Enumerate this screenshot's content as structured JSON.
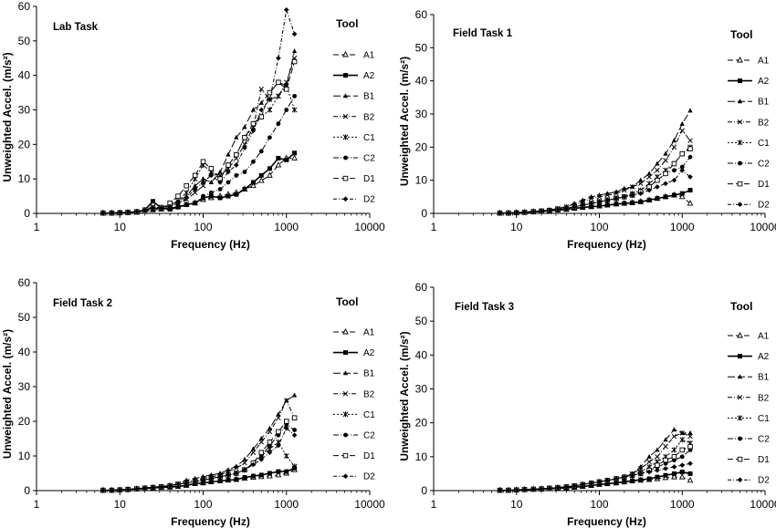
{
  "figure": {
    "legend_title": "Tool",
    "xlabel": "Frequency (Hz)",
    "ylabel": "Unweighted Accel. (m/s²)",
    "legend_labels": [
      "A1",
      "A2",
      "B1",
      "B2",
      "C1",
      "C2",
      "D1",
      "D2"
    ],
    "xtick_labels": [
      "1",
      "10",
      "100",
      "1000",
      "10000"
    ],
    "ytick_labels": [
      "0",
      "10",
      "20",
      "30",
      "40",
      "50",
      "60"
    ]
  },
  "chart_data": [
    {
      "type": "line",
      "title": "Lab Task",
      "xlabel": "Frequency (Hz)",
      "ylabel": "Unweighted Accel. (m/s²)",
      "xscale": "log",
      "xlim": [
        1,
        10000
      ],
      "ylim": [
        0,
        60
      ],
      "legend_title": "Tool",
      "legend_position": "right",
      "grid": false,
      "x": [
        6.3,
        8,
        10,
        12.5,
        16,
        20,
        25,
        31.5,
        40,
        50,
        63,
        80,
        100,
        125,
        160,
        200,
        250,
        315,
        400,
        500,
        630,
        800,
        1000,
        1250
      ],
      "series": [
        {
          "name": "A1",
          "values": [
            0.1,
            0.1,
            0.1,
            0.2,
            0.3,
            0.5,
            1.0,
            1.2,
            1.5,
            2.0,
            2.5,
            3.0,
            4.0,
            4.5,
            5.0,
            5.5,
            6.0,
            7.0,
            8.0,
            9.5,
            11.0,
            14.0,
            16.0,
            16.0
          ]
        },
        {
          "name": "A2",
          "values": [
            0.1,
            0.1,
            0.2,
            0.3,
            0.5,
            1.0,
            3.5,
            1.5,
            1.2,
            1.8,
            2.5,
            3.0,
            4.5,
            5.0,
            4.5,
            5.0,
            5.5,
            7.0,
            9.0,
            11.0,
            13.0,
            16.0,
            15.5,
            17.5
          ]
        },
        {
          "name": "B1",
          "values": [
            0.1,
            0.1,
            0.2,
            0.3,
            0.5,
            1.0,
            1.5,
            1.5,
            2.5,
            3.5,
            5.0,
            8.0,
            10.0,
            9.0,
            12.0,
            17.0,
            22.0,
            25.0,
            30.0,
            32.0,
            35.0,
            38.0,
            37.0,
            47.0
          ]
        },
        {
          "name": "B2",
          "values": [
            0.1,
            0.1,
            0.2,
            0.3,
            0.5,
            1.0,
            2.0,
            1.5,
            2.0,
            3.0,
            4.0,
            6.0,
            8.0,
            12.0,
            11.0,
            13.0,
            16.0,
            20.0,
            25.0,
            36.0,
            33.0,
            34.0,
            38.0,
            45.0
          ]
        },
        {
          "name": "C1",
          "values": [
            0.1,
            0.1,
            0.2,
            0.3,
            0.5,
            1.0,
            1.5,
            1.8,
            2.5,
            3.5,
            6.0,
            10.0,
            14.0,
            12.0,
            10.0,
            14.0,
            17.0,
            22.0,
            25.0,
            28.0,
            30.0,
            34.0,
            37.0,
            30.0
          ]
        },
        {
          "name": "C2",
          "values": [
            0.1,
            0.1,
            0.2,
            0.3,
            0.5,
            0.8,
            1.0,
            1.2,
            1.5,
            2.0,
            2.5,
            3.0,
            5.0,
            6.0,
            7.0,
            9.0,
            11.0,
            12.0,
            15.0,
            18.0,
            22.0,
            26.0,
            30.0,
            34.0
          ]
        },
        {
          "name": "D1",
          "values": [
            0.1,
            0.1,
            0.2,
            0.3,
            0.5,
            1.0,
            1.5,
            1.5,
            3.0,
            5.0,
            8.0,
            11.0,
            15.0,
            13.0,
            10.0,
            14.0,
            17.0,
            22.0,
            26.0,
            28.0,
            35.0,
            38.0,
            36.0,
            44.0
          ]
        },
        {
          "name": "D2",
          "values": [
            0.1,
            0.1,
            0.2,
            0.3,
            0.5,
            1.0,
            1.5,
            1.5,
            2.0,
            3.0,
            4.5,
            7.0,
            9.0,
            11.0,
            9.0,
            12.0,
            14.0,
            19.0,
            24.0,
            30.0,
            33.0,
            45.0,
            59.0,
            52.0
          ]
        }
      ]
    },
    {
      "type": "line",
      "title": "Field Task 1",
      "xlabel": "Frequency (Hz)",
      "ylabel": "Unweighted Accel. (m/s²)",
      "xscale": "log",
      "xlim": [
        1,
        10000
      ],
      "ylim": [
        0,
        60
      ],
      "legend_title": "Tool",
      "legend_position": "right",
      "grid": false,
      "x": [
        6.3,
        8,
        10,
        12.5,
        16,
        20,
        25,
        31.5,
        40,
        50,
        63,
        80,
        100,
        125,
        160,
        200,
        250,
        315,
        400,
        500,
        630,
        800,
        1000,
        1250
      ],
      "series": [
        {
          "name": "A1",
          "values": [
            0.1,
            0.1,
            0.2,
            0.3,
            0.5,
            0.6,
            0.8,
            1.0,
            1.2,
            1.5,
            1.8,
            2.0,
            2.2,
            2.5,
            2.8,
            3.0,
            3.2,
            3.5,
            4.0,
            4.5,
            5.0,
            5.5,
            5.0,
            3.0
          ]
        },
        {
          "name": "A2",
          "values": [
            0.1,
            0.1,
            0.2,
            0.3,
            0.5,
            0.6,
            0.8,
            1.0,
            1.2,
            1.5,
            1.8,
            2.0,
            2.2,
            2.5,
            2.8,
            3.0,
            3.2,
            3.5,
            4.0,
            4.5,
            5.0,
            5.5,
            6.0,
            7.0
          ]
        },
        {
          "name": "B1",
          "values": [
            0.1,
            0.1,
            0.2,
            0.4,
            0.6,
            0.8,
            1.0,
            1.5,
            2.0,
            3.0,
            4.0,
            5.0,
            5.5,
            6.0,
            6.5,
            7.5,
            8.0,
            10.0,
            12.0,
            15.0,
            18.0,
            22.0,
            27.0,
            31.0
          ]
        },
        {
          "name": "B2",
          "values": [
            0.1,
            0.1,
            0.2,
            0.4,
            0.6,
            0.8,
            1.0,
            1.5,
            2.0,
            2.5,
            3.5,
            4.5,
            5.0,
            5.5,
            6.0,
            7.0,
            8.0,
            9.0,
            11.0,
            13.0,
            16.0,
            20.0,
            25.0,
            22.0
          ]
        },
        {
          "name": "C1",
          "values": [
            0.1,
            0.1,
            0.2,
            0.3,
            0.5,
            0.7,
            0.9,
            1.2,
            1.5,
            2.0,
            2.5,
            3.0,
            3.5,
            4.0,
            4.5,
            5.0,
            6.0,
            7.0,
            9.0,
            11.0,
            13.0,
            15.0,
            18.0,
            20.0
          ]
        },
        {
          "name": "C2",
          "values": [
            0.1,
            0.1,
            0.2,
            0.3,
            0.5,
            0.7,
            0.9,
            1.2,
            1.5,
            2.0,
            2.5,
            3.0,
            3.5,
            4.0,
            4.5,
            5.0,
            5.5,
            6.5,
            8.0,
            10.0,
            12.0,
            13.0,
            14.0,
            17.0
          ]
        },
        {
          "name": "D1",
          "values": [
            0.1,
            0.1,
            0.2,
            0.3,
            0.5,
            0.7,
            0.9,
            1.2,
            1.5,
            2.0,
            2.5,
            3.0,
            3.5,
            4.0,
            4.5,
            5.0,
            5.5,
            6.5,
            8.0,
            10.0,
            12.0,
            15.0,
            18.0,
            19.5
          ]
        },
        {
          "name": "D2",
          "values": [
            0.1,
            0.1,
            0.2,
            0.3,
            0.5,
            0.7,
            0.9,
            1.2,
            1.5,
            2.0,
            2.5,
            3.0,
            3.5,
            4.0,
            4.5,
            5.0,
            5.5,
            6.0,
            7.0,
            8.0,
            9.0,
            10.0,
            13.0,
            11.0
          ]
        }
      ]
    },
    {
      "type": "line",
      "title": "Field Task 2",
      "xlabel": "Frequency (Hz)",
      "ylabel": "Unweighted Accel. (m/s²)",
      "xscale": "log",
      "xlim": [
        1,
        10000
      ],
      "ylim": [
        0,
        60
      ],
      "legend_title": "Tool",
      "legend_position": "right",
      "grid": false,
      "x": [
        6.3,
        8,
        10,
        12.5,
        16,
        20,
        25,
        31.5,
        40,
        50,
        63,
        80,
        100,
        125,
        160,
        200,
        250,
        315,
        400,
        500,
        630,
        800,
        1000,
        1250
      ],
      "series": [
        {
          "name": "A1",
          "values": [
            0.1,
            0.1,
            0.2,
            0.3,
            0.5,
            0.6,
            0.8,
            0.9,
            1.0,
            1.2,
            1.5,
            2.0,
            2.2,
            2.5,
            2.8,
            3.0,
            3.2,
            3.5,
            3.8,
            4.0,
            4.2,
            4.5,
            5.0,
            6.0
          ]
        },
        {
          "name": "A2",
          "values": [
            0.1,
            0.1,
            0.2,
            0.3,
            0.5,
            0.6,
            0.8,
            0.9,
            1.0,
            1.2,
            1.5,
            2.0,
            2.2,
            2.5,
            2.8,
            3.0,
            3.2,
            3.8,
            4.2,
            4.5,
            5.0,
            5.5,
            5.5,
            6.5
          ]
        },
        {
          "name": "B1",
          "values": [
            0.1,
            0.1,
            0.2,
            0.4,
            0.6,
            0.8,
            1.0,
            1.2,
            1.5,
            2.0,
            3.0,
            3.5,
            4.0,
            4.5,
            5.0,
            6.0,
            7.0,
            9.0,
            12.0,
            15.0,
            18.0,
            22.0,
            26.0,
            27.5
          ]
        },
        {
          "name": "B2",
          "values": [
            0.1,
            0.1,
            0.2,
            0.4,
            0.6,
            0.8,
            1.0,
            1.2,
            1.5,
            2.0,
            2.5,
            3.0,
            3.5,
            4.0,
            4.5,
            5.5,
            6.5,
            8.0,
            11.0,
            14.0,
            17.0,
            21.0,
            26.0,
            21.0
          ]
        },
        {
          "name": "C1",
          "values": [
            0.1,
            0.1,
            0.2,
            0.3,
            0.5,
            0.7,
            0.9,
            1.1,
            1.4,
            1.8,
            2.2,
            2.6,
            3.0,
            3.5,
            4.0,
            4.5,
            5.0,
            6.0,
            8.0,
            10.0,
            12.0,
            14.0,
            10.0,
            7.0
          ]
        },
        {
          "name": "C2",
          "values": [
            0.1,
            0.1,
            0.2,
            0.3,
            0.5,
            0.7,
            0.9,
            1.1,
            1.4,
            1.8,
            2.2,
            2.6,
            3.0,
            3.5,
            4.0,
            4.5,
            5.0,
            6.0,
            8.0,
            10.0,
            13.0,
            16.0,
            19.0,
            17.5
          ]
        },
        {
          "name": "D1",
          "values": [
            0.1,
            0.1,
            0.2,
            0.3,
            0.5,
            0.7,
            0.9,
            1.1,
            1.4,
            1.8,
            2.2,
            2.6,
            3.0,
            3.5,
            4.0,
            4.5,
            5.0,
            6.0,
            8.0,
            11.0,
            14.0,
            17.0,
            20.0,
            21.0
          ]
        },
        {
          "name": "D2",
          "values": [
            0.1,
            0.1,
            0.2,
            0.3,
            0.5,
            0.7,
            0.9,
            1.1,
            1.4,
            1.8,
            2.2,
            2.6,
            3.0,
            3.5,
            4.0,
            4.5,
            5.0,
            6.0,
            7.5,
            9.0,
            11.0,
            13.0,
            18.0,
            16.0
          ]
        }
      ]
    },
    {
      "type": "line",
      "title": "Field Task 3",
      "xlabel": "Frequency (Hz)",
      "ylabel": "Unweighted Accel. (m/s²)",
      "xscale": "log",
      "xlim": [
        1,
        10000
      ],
      "ylim": [
        0,
        60
      ],
      "legend_title": "Tool",
      "legend_position": "right",
      "grid": false,
      "x": [
        6.3,
        8,
        10,
        12.5,
        16,
        20,
        25,
        31.5,
        40,
        50,
        63,
        80,
        100,
        125,
        160,
        200,
        250,
        315,
        400,
        500,
        630,
        800,
        1000,
        1250
      ],
      "series": [
        {
          "name": "A1",
          "values": [
            0.1,
            0.1,
            0.2,
            0.3,
            0.4,
            0.5,
            0.6,
            0.7,
            0.8,
            1.0,
            1.2,
            1.5,
            1.8,
            2.0,
            2.2,
            2.5,
            2.8,
            3.0,
            3.2,
            3.5,
            3.8,
            4.0,
            4.0,
            3.0
          ]
        },
        {
          "name": "A2",
          "values": [
            0.1,
            0.1,
            0.2,
            0.3,
            0.4,
            0.5,
            0.6,
            0.7,
            0.8,
            1.0,
            1.2,
            1.5,
            1.8,
            2.0,
            2.3,
            2.6,
            2.9,
            3.2,
            3.5,
            4.0,
            4.5,
            5.0,
            5.5,
            5.0
          ]
        },
        {
          "name": "B1",
          "values": [
            0.1,
            0.1,
            0.2,
            0.3,
            0.4,
            0.5,
            0.7,
            0.9,
            1.1,
            1.4,
            1.8,
            2.2,
            2.6,
            3.0,
            3.5,
            4.0,
            5.0,
            7.0,
            10.0,
            12.0,
            15.0,
            18.0,
            17.0,
            17.0
          ]
        },
        {
          "name": "B2",
          "values": [
            0.1,
            0.1,
            0.2,
            0.3,
            0.4,
            0.5,
            0.7,
            0.9,
            1.1,
            1.4,
            1.8,
            2.2,
            2.6,
            3.0,
            3.5,
            4.0,
            5.0,
            6.5,
            8.5,
            10.0,
            13.0,
            16.0,
            17.0,
            16.0
          ]
        },
        {
          "name": "C1",
          "values": [
            0.1,
            0.1,
            0.2,
            0.3,
            0.4,
            0.5,
            0.7,
            0.9,
            1.1,
            1.4,
            1.8,
            2.2,
            2.6,
            3.0,
            3.5,
            4.0,
            4.5,
            5.5,
            7.0,
            8.5,
            10.0,
            12.0,
            15.0,
            14.0
          ]
        },
        {
          "name": "C2",
          "values": [
            0.1,
            0.1,
            0.2,
            0.3,
            0.4,
            0.5,
            0.7,
            0.9,
            1.1,
            1.4,
            1.8,
            2.2,
            2.6,
            3.0,
            3.5,
            4.0,
            4.5,
            5.0,
            6.0,
            7.0,
            8.0,
            9.0,
            10.0,
            12.0
          ]
        },
        {
          "name": "D1",
          "values": [
            0.1,
            0.1,
            0.2,
            0.3,
            0.4,
            0.5,
            0.7,
            0.9,
            1.1,
            1.4,
            1.8,
            2.2,
            2.6,
            3.0,
            3.5,
            4.0,
            4.5,
            5.0,
            6.0,
            7.5,
            9.0,
            10.0,
            12.0,
            13.0
          ]
        },
        {
          "name": "D2",
          "values": [
            0.1,
            0.1,
            0.2,
            0.3,
            0.4,
            0.5,
            0.7,
            0.9,
            1.1,
            1.4,
            1.8,
            2.2,
            2.6,
            3.0,
            3.5,
            4.0,
            4.5,
            5.0,
            5.5,
            6.0,
            6.5,
            7.0,
            7.5,
            8.0
          ]
        }
      ]
    }
  ]
}
